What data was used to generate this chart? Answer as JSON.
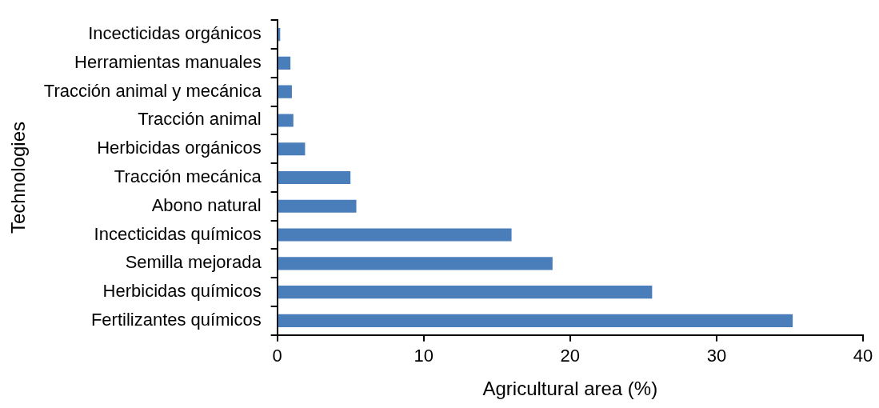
{
  "chart_data": {
    "type": "bar",
    "orientation": "horizontal",
    "xlabel": "Agricultural area (%)",
    "ylabel": "Technologies",
    "categories": [
      "Incecticidas orgánicos",
      "Herramientas manuales",
      "Tracción animal y mecánica",
      "Tracción animal",
      "Herbicidas orgánicos",
      "Tracción mecánica",
      "Abono natural",
      "Incecticidas químicos",
      "Semilla mejorada",
      "Herbicidas químicos",
      "Fertilizantes químicos"
    ],
    "values": [
      0.2,
      0.9,
      1.0,
      1.1,
      1.9,
      5.0,
      5.4,
      16.0,
      18.8,
      25.6,
      35.2
    ],
    "color": "#4a7ebb",
    "xlim": [
      0,
      40
    ],
    "xticks": [
      0,
      10,
      20,
      30,
      40
    ],
    "grid": false,
    "legend": false
  }
}
